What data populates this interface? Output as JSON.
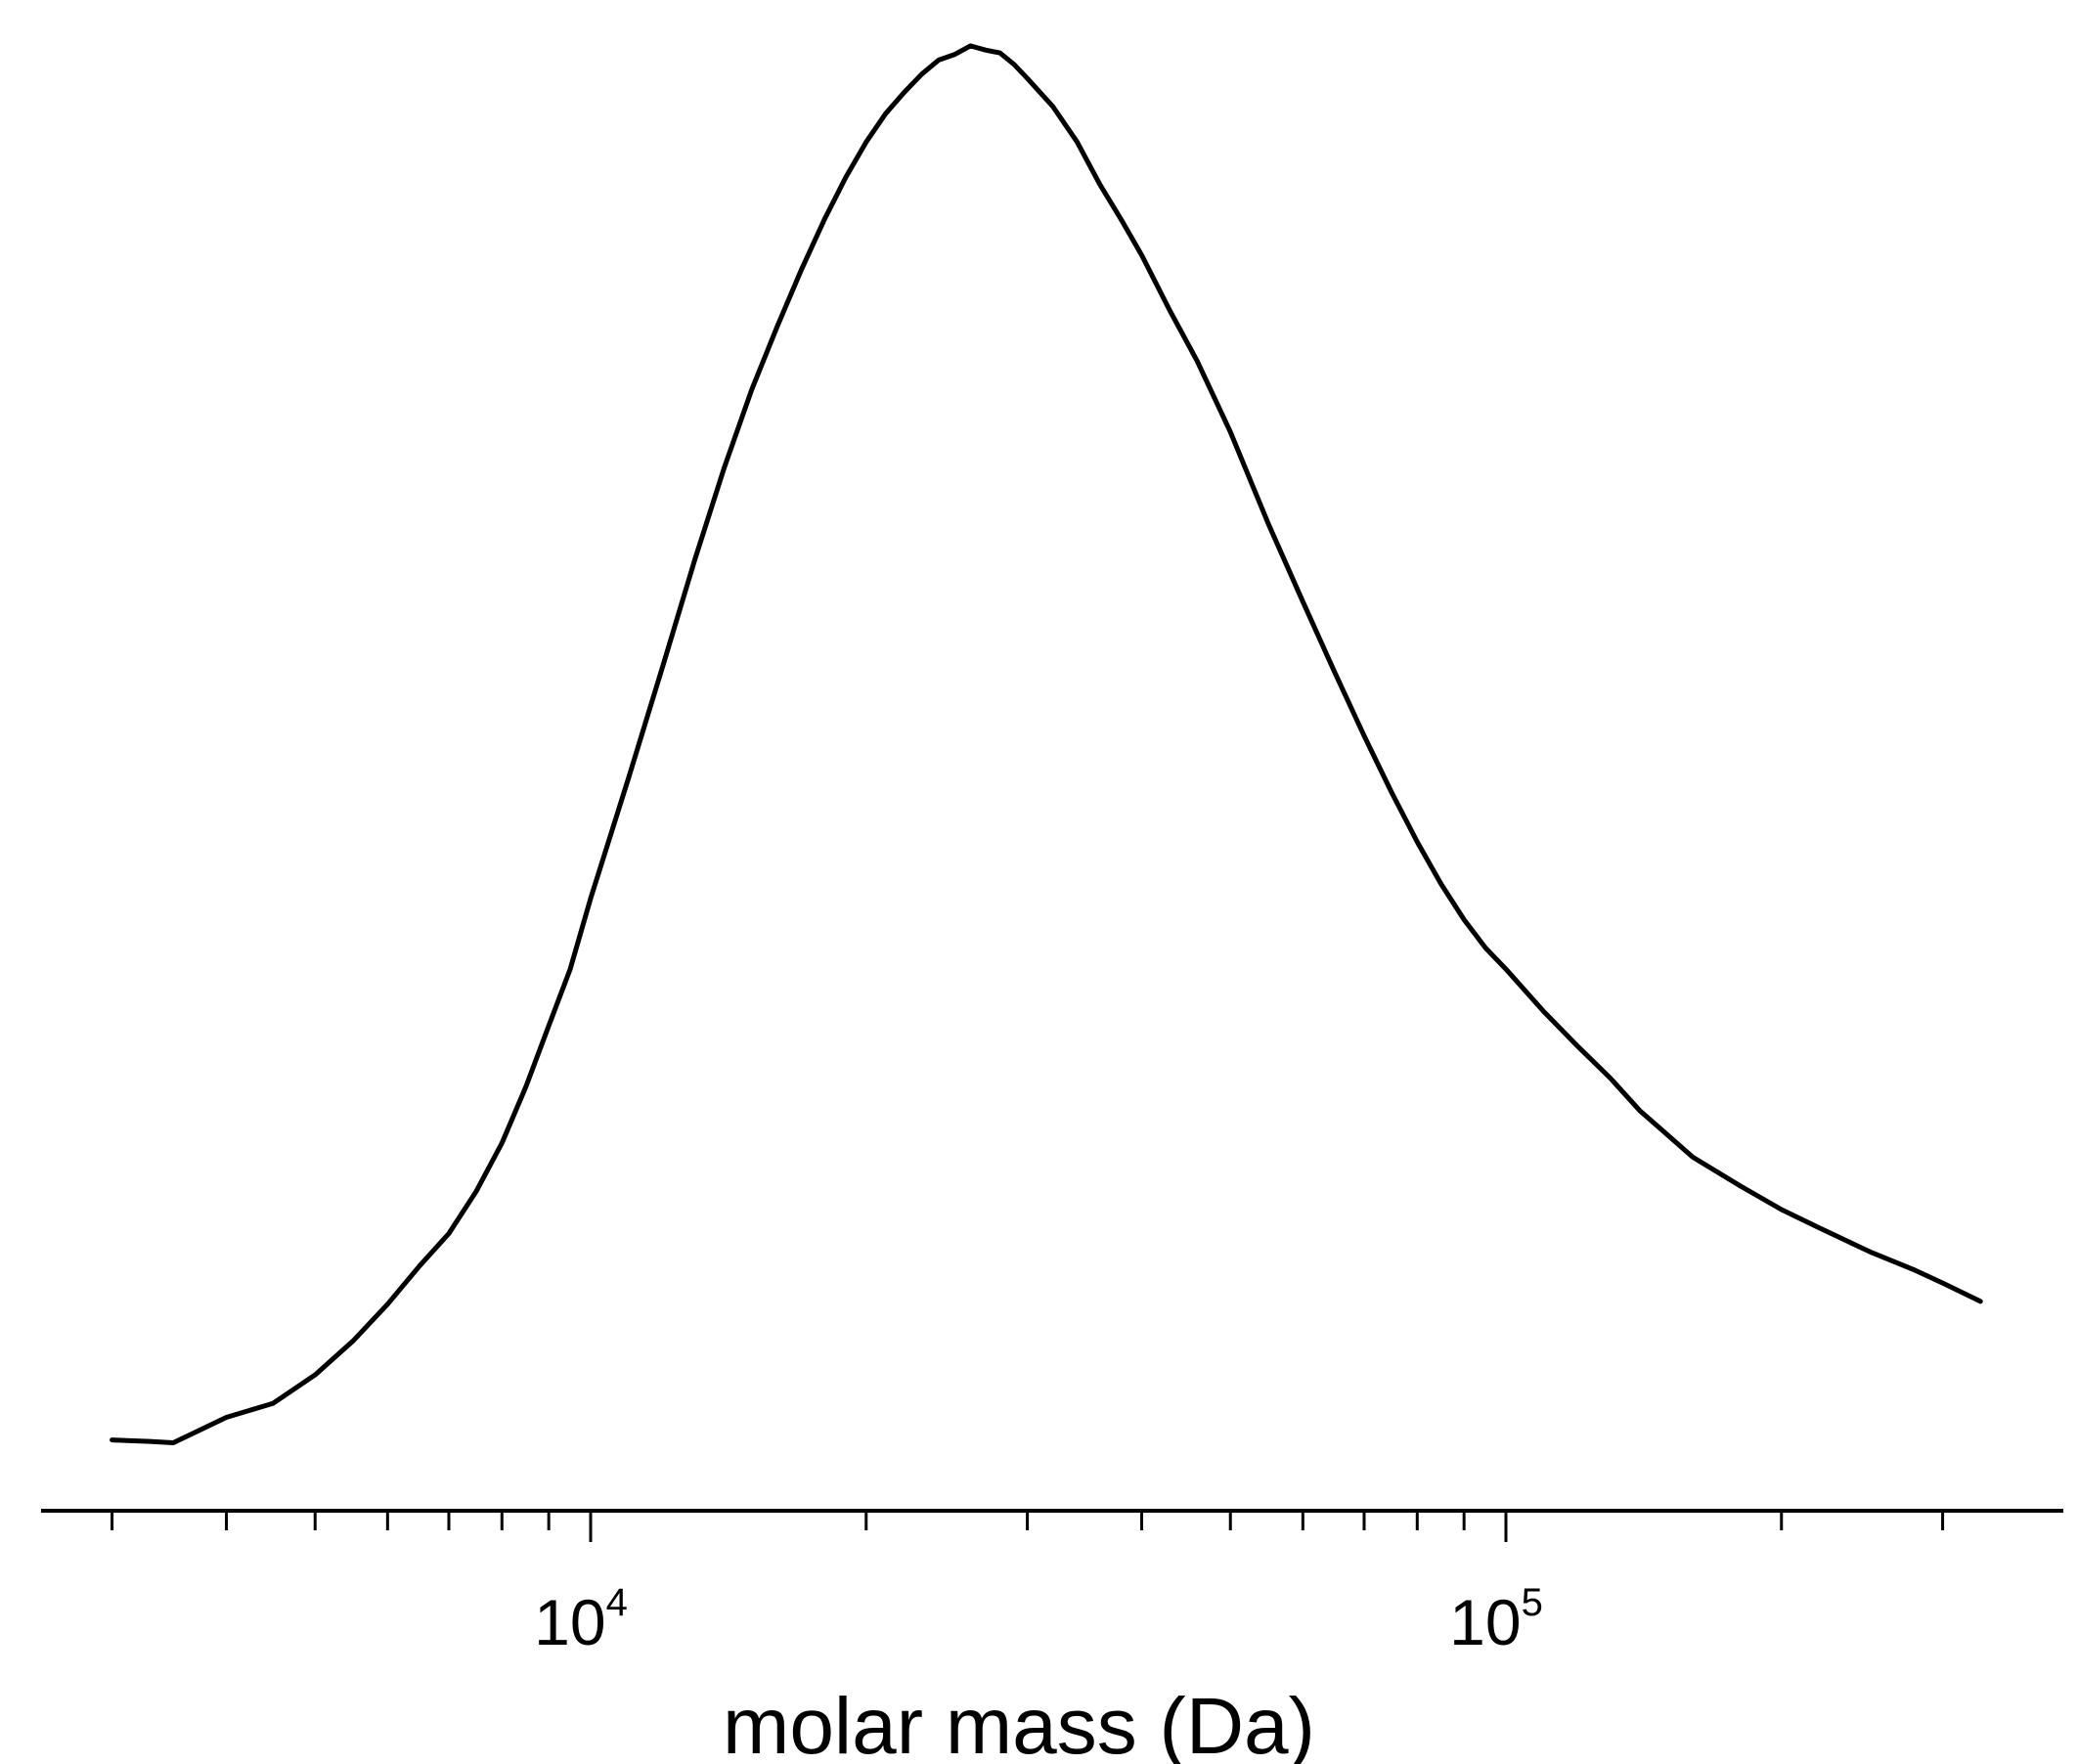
{
  "chart_data": {
    "type": "line",
    "title": "",
    "xlabel": "molar mass (Da)",
    "ylabel": "",
    "x_scale": "log",
    "xlim": [
      3000,
      330000
    ],
    "ylim": [
      0,
      1
    ],
    "grid": false,
    "y_axis_visible": false,
    "line_color": "#000000",
    "x_ticks": [
      {
        "value": 10000,
        "base": "10",
        "exp": "4"
      },
      {
        "value": 100000,
        "base": "10",
        "exp": "5"
      }
    ],
    "minor_ticks": [
      3000,
      4000,
      5000,
      6000,
      7000,
      8000,
      9000,
      20000,
      30000,
      40000,
      50000,
      60000,
      70000,
      80000,
      90000,
      200000,
      300000
    ],
    "series": [
      {
        "x": [
          3000,
          3300,
          3500,
          4000,
          4500,
          5000,
          5500,
          6000,
          6500,
          7000,
          7500,
          8000,
          8500,
          9000,
          9500,
          10000,
          11000,
          12000,
          13000,
          14000,
          15000,
          16000,
          17000,
          18000,
          19000,
          20000,
          21000,
          22000,
          23000,
          24000,
          25000,
          26000,
          27000,
          28000,
          29000,
          30000,
          32000,
          34000,
          36000,
          38000,
          40000,
          43000,
          46000,
          50000,
          55000,
          60000,
          65000,
          70000,
          75000,
          80000,
          85000,
          90000,
          95000,
          100000,
          110000,
          120000,
          130000,
          140000,
          150000,
          160000,
          180000,
          200000,
          220000,
          250000,
          280000,
          300000,
          330000
        ],
        "y": [
          0.012,
          0.011,
          0.01,
          0.028,
          0.038,
          0.058,
          0.082,
          0.108,
          0.135,
          0.158,
          0.188,
          0.222,
          0.262,
          0.305,
          0.345,
          0.395,
          0.48,
          0.56,
          0.635,
          0.7,
          0.755,
          0.8,
          0.84,
          0.875,
          0.905,
          0.93,
          0.95,
          0.965,
          0.978,
          0.988,
          0.992,
          0.998,
          0.995,
          0.993,
          0.985,
          0.975,
          0.955,
          0.93,
          0.9,
          0.875,
          0.85,
          0.81,
          0.775,
          0.725,
          0.66,
          0.605,
          0.555,
          0.51,
          0.47,
          0.435,
          0.405,
          0.38,
          0.36,
          0.345,
          0.315,
          0.29,
          0.268,
          0.245,
          0.228,
          0.212,
          0.192,
          0.175,
          0.162,
          0.145,
          0.132,
          0.123,
          0.11
        ]
      }
    ]
  }
}
